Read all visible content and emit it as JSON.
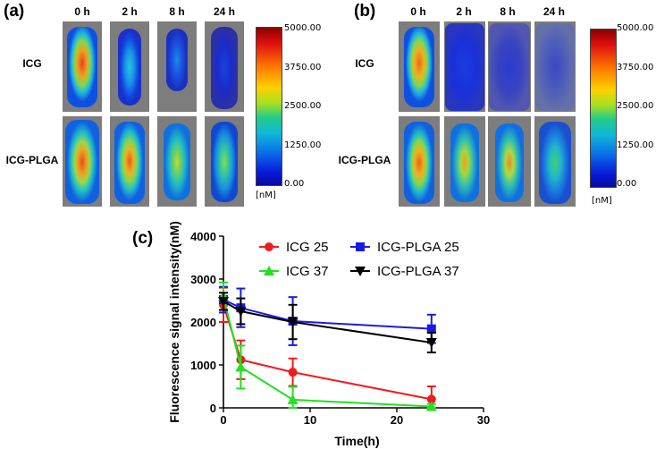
{
  "panel_a": {
    "letter": "(a)",
    "columns": [
      "0 h",
      "2 h",
      "8 h",
      "24 h"
    ],
    "rows": [
      "ICG",
      "ICG-PLGA"
    ],
    "colorbar_ticks": [
      "5000.00",
      "3750.00",
      "2500.00",
      "1250.00",
      "0.00"
    ],
    "colorbar_unit": "[nM]"
  },
  "panel_b": {
    "letter": "(b)",
    "columns": [
      "0 h",
      "2 h",
      "8 h",
      "24 h"
    ],
    "rows": [
      "ICG",
      "ICG-PLGA"
    ],
    "colorbar_ticks": [
      "5000.00",
      "3750.00",
      "2500.00",
      "1250.00",
      "0.00"
    ],
    "colorbar_unit": "[nM]"
  },
  "panel_c": {
    "letter": "(c)"
  },
  "chart_data": {
    "type": "line",
    "xlabel": "Time(h)",
    "ylabel": "Fluorescence signal intensity(nM)",
    "xlim": [
      0,
      30
    ],
    "ylim": [
      0,
      4000
    ],
    "xticks": [
      0,
      10,
      20,
      30
    ],
    "yticks": [
      0,
      1000,
      2000,
      3000,
      4000
    ],
    "x": [
      0,
      2,
      8,
      24
    ],
    "legend_position": "top-right",
    "series": [
      {
        "name": "ICG 25",
        "color": "#ee1c1c",
        "marker": "circle",
        "values": [
          2400,
          1120,
          830,
          200
        ],
        "errors": [
          400,
          450,
          320,
          300
        ]
      },
      {
        "name": "ICG-PLGA 25",
        "color": "#1a1ae6",
        "marker": "square",
        "values": [
          2520,
          2330,
          2020,
          1840
        ],
        "errors": [
          300,
          450,
          560,
          330
        ]
      },
      {
        "name": "ICG 37",
        "color": "#22e022",
        "marker": "triangle-up",
        "values": [
          2600,
          950,
          190,
          30
        ],
        "errors": [
          320,
          500,
          300,
          60
        ]
      },
      {
        "name": "ICG-PLGA 37",
        "color": "#000000",
        "marker": "triangle-down",
        "values": [
          2480,
          2250,
          2000,
          1520
        ],
        "errors": [
          200,
          300,
          400,
          230
        ]
      }
    ]
  }
}
